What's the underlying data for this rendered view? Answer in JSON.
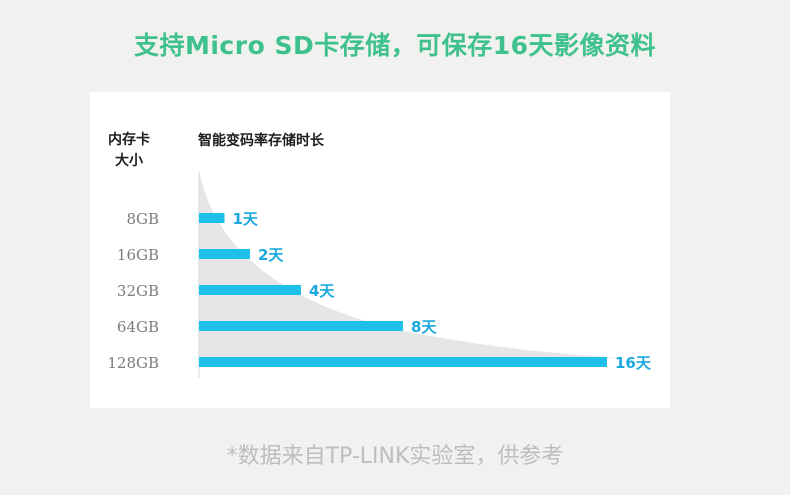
{
  "headline": "支持Micro SD卡存储，可保存16天影像资料",
  "footnote": "*数据来自TP-LINK实验室，供参考",
  "colors": {
    "headline": "#3fc08f",
    "bar": "#1fc0e8",
    "bar_label": "#1aa8e0",
    "area": "#e6e6e6",
    "footnote": "#bdbdbd"
  },
  "chart_data": {
    "type": "bar",
    "orientation": "horizontal",
    "column_headers": {
      "category": "内存卡大小",
      "category_lines": [
        "内存卡",
        "大小"
      ],
      "value": "智能变码率存储时长"
    },
    "categories": [
      "8GB",
      "16GB",
      "32GB",
      "64GB",
      "128GB"
    ],
    "values": [
      1,
      2,
      4,
      8,
      16
    ],
    "value_labels": [
      "1天",
      "2天",
      "4天",
      "8天",
      "16天"
    ],
    "xlim": [
      0,
      16
    ],
    "grid": false,
    "legend": "none"
  }
}
